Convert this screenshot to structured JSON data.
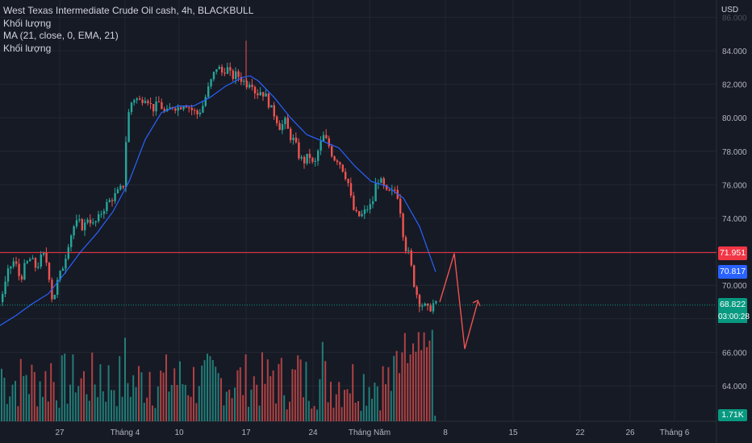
{
  "legend": {
    "line1": "West Texas Intermediate Crude Oil cash, 4h, BLACKBULL",
    "line2": "Khối lượng",
    "line3": "MA (21, close, 0, EMA, 21)",
    "line4": "Khối lượng"
  },
  "price_axis": {
    "currency": "USD",
    "ticks": [
      "84.000",
      "82.000",
      "80.000",
      "78.000",
      "76.000",
      "74.000",
      "70.000",
      "66.000",
      "64.000"
    ]
  },
  "time_axis": {
    "ticks": [
      "27",
      "Tháng 4",
      "10",
      "17",
      "24",
      "Tháng Năm",
      "8",
      "15",
      "22",
      "26",
      "Tháng 6"
    ]
  },
  "tags": {
    "resistance": "71.951",
    "ema": "70.817",
    "last_price": "68.822",
    "countdown": "03:00:28",
    "volume": "1.71K"
  },
  "colors": {
    "background": "#161a25",
    "up": "#26a69a",
    "down": "#ef5350",
    "ema": "#2962ff",
    "resistance": "#f23645",
    "annotation": "#ef5350"
  },
  "chart_data": {
    "type": "candlestick",
    "symbol": "West Texas Intermediate Crude Oil cash",
    "interval": "4h",
    "broker": "BLACKBULL",
    "ylim": [
      62.5,
      86.0
    ],
    "resistance_level": 71.951,
    "ema_21_last": 70.817,
    "last_price": 68.822,
    "price_path": [
      [
        0,
        69.2
      ],
      [
        5,
        70.0
      ],
      [
        10,
        71.0
      ],
      [
        17,
        71.5
      ],
      [
        24,
        70.3
      ],
      [
        30,
        71.2
      ],
      [
        37,
        71.6
      ],
      [
        44,
        71.0
      ],
      [
        52,
        71.9
      ],
      [
        58,
        71.2
      ],
      [
        64,
        69.0
      ],
      [
        70,
        70.2
      ],
      [
        78,
        71.3
      ],
      [
        84,
        72.6
      ],
      [
        90,
        73.5
      ],
      [
        96,
        73.8
      ],
      [
        102,
        73.4
      ],
      [
        108,
        74.1
      ],
      [
        114,
        73.6
      ],
      [
        120,
        73.9
      ],
      [
        126,
        74.5
      ],
      [
        132,
        74.9
      ],
      [
        138,
        75.2
      ],
      [
        146,
        75.6
      ],
      [
        152,
        76.0
      ],
      [
        156,
        79.5
      ],
      [
        160,
        80.8
      ],
      [
        166,
        81.2
      ],
      [
        172,
        81.0
      ],
      [
        180,
        81.3
      ],
      [
        188,
        80.5
      ],
      [
        196,
        80.9
      ],
      [
        204,
        80.2
      ],
      [
        212,
        80.7
      ],
      [
        220,
        80.6
      ],
      [
        228,
        80.9
      ],
      [
        236,
        80.5
      ],
      [
        244,
        80.2
      ],
      [
        250,
        80.7
      ],
      [
        256,
        81.6
      ],
      [
        262,
        82.4
      ],
      [
        268,
        83.1
      ],
      [
        274,
        82.7
      ],
      [
        280,
        83.0
      ],
      [
        286,
        82.4
      ],
      [
        292,
        82.6
      ],
      [
        298,
        82.3
      ],
      [
        305,
        82.0
      ],
      [
        310,
        82.3
      ],
      [
        316,
        81.4
      ],
      [
        322,
        81.6
      ],
      [
        328,
        81.3
      ],
      [
        334,
        80.6
      ],
      [
        340,
        80.1
      ],
      [
        346,
        79.4
      ],
      [
        352,
        79.8
      ],
      [
        358,
        78.9
      ],
      [
        364,
        78.6
      ],
      [
        370,
        77.6
      ],
      [
        376,
        77.4
      ],
      [
        382,
        77.8
      ],
      [
        388,
        77.0
      ],
      [
        394,
        78.2
      ],
      [
        400,
        78.9
      ],
      [
        406,
        78.4
      ],
      [
        412,
        77.6
      ],
      [
        418,
        77.5
      ],
      [
        424,
        76.9
      ],
      [
        430,
        76.2
      ],
      [
        436,
        74.6
      ],
      [
        442,
        74.1
      ],
      [
        448,
        74.2
      ],
      [
        454,
        74.6
      ],
      [
        460,
        74.8
      ],
      [
        466,
        76.4
      ],
      [
        472,
        76.1
      ],
      [
        478,
        75.5
      ],
      [
        484,
        75.5
      ],
      [
        490,
        75.8
      ],
      [
        496,
        74.2
      ],
      [
        500,
        72.4
      ],
      [
        506,
        71.8
      ],
      [
        512,
        70.1
      ],
      [
        518,
        69.0
      ],
      [
        524,
        68.8
      ],
      [
        530,
        68.5
      ],
      [
        536,
        68.9
      ],
      [
        540,
        68.82
      ]
    ],
    "ema_path": [
      [
        0,
        67.6
      ],
      [
        20,
        68.2
      ],
      [
        40,
        68.9
      ],
      [
        60,
        69.5
      ],
      [
        80,
        70.7
      ],
      [
        100,
        72.0
      ],
      [
        120,
        73.1
      ],
      [
        140,
        74.4
      ],
      [
        160,
        76.2
      ],
      [
        180,
        78.7
      ],
      [
        200,
        80.3
      ],
      [
        220,
        80.7
      ],
      [
        240,
        80.7
      ],
      [
        260,
        81.2
      ],
      [
        280,
        81.9
      ],
      [
        300,
        82.4
      ],
      [
        310,
        82.5
      ],
      [
        320,
        82.2
      ],
      [
        340,
        81.2
      ],
      [
        360,
        80.0
      ],
      [
        380,
        79.0
      ],
      [
        400,
        78.6
      ],
      [
        420,
        78.2
      ],
      [
        440,
        77.1
      ],
      [
        460,
        76.2
      ],
      [
        480,
        75.9
      ],
      [
        500,
        75.2
      ],
      [
        520,
        73.5
      ],
      [
        540,
        70.8
      ]
    ],
    "projection": [
      [
        545,
        69.0
      ],
      [
        563,
        71.9
      ],
      [
        576,
        66.2
      ],
      [
        592,
        69.0
      ]
    ],
    "volume_max": 5.0,
    "last_volume": "1.71K"
  }
}
